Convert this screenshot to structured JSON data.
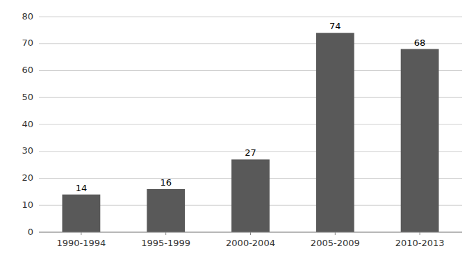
{
  "chart_data": {
    "type": "bar",
    "categories": [
      "1990-1994",
      "1995-1999",
      "2000-2004",
      "2005-2009",
      "2010-2013"
    ],
    "values": [
      14,
      16,
      27,
      74,
      68
    ],
    "color": "#595959",
    "ylim": [
      0,
      80
    ],
    "yticks": [
      0,
      10,
      20,
      30,
      40,
      50,
      60,
      70,
      80
    ],
    "grid": true,
    "data_labels": true
  }
}
